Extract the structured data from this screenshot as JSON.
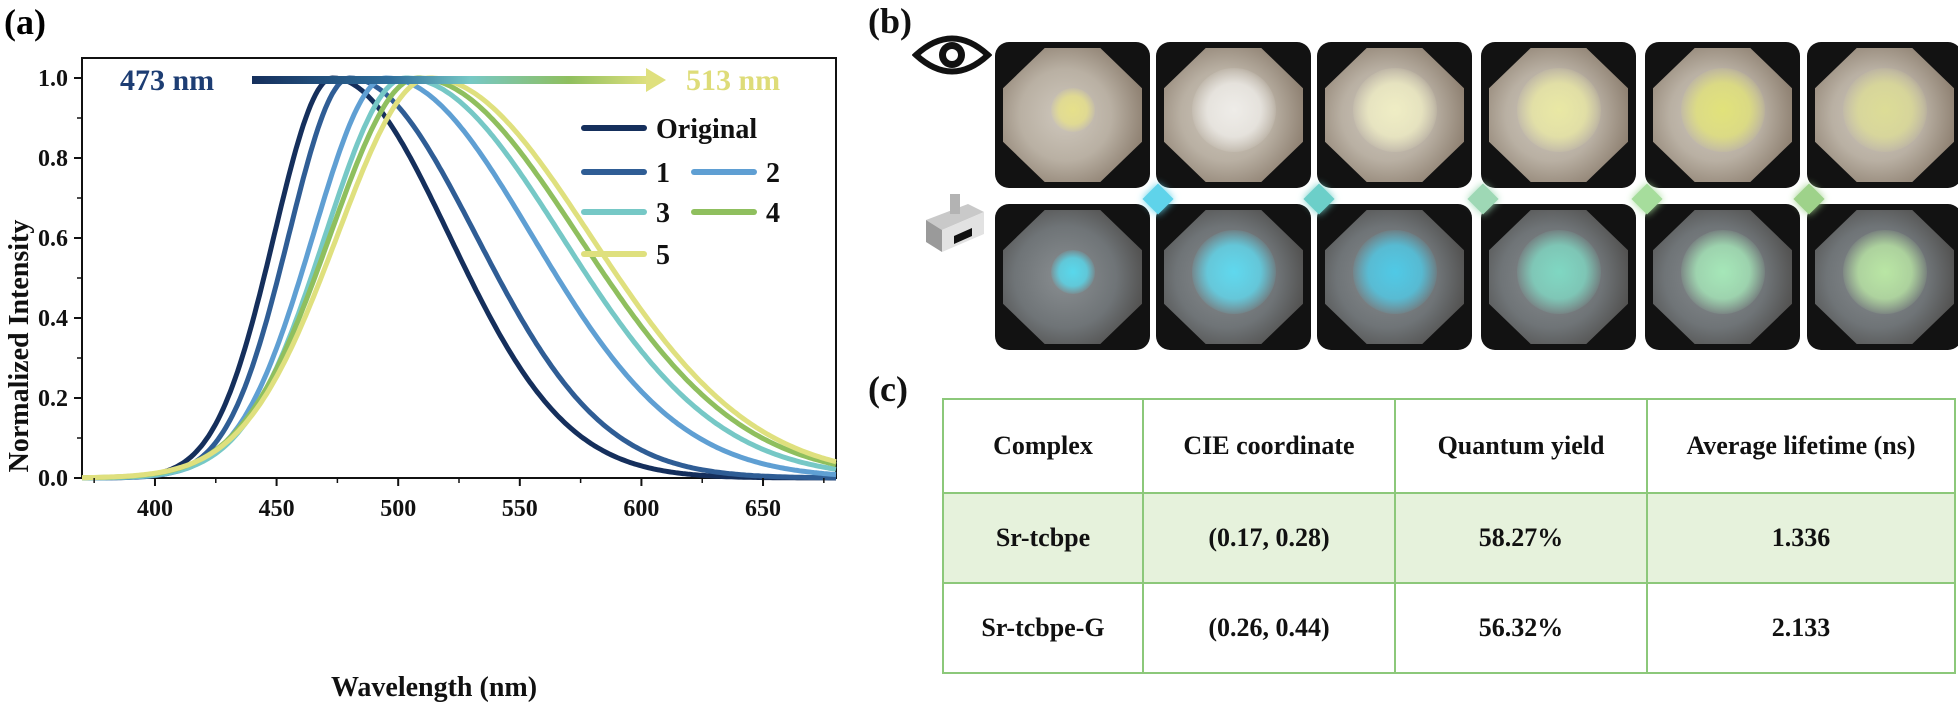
{
  "panels": {
    "a": "(a)",
    "b": "(b)",
    "c": "(c)"
  },
  "chart_data": {
    "type": "line",
    "xlabel": "Wavelength (nm)",
    "ylabel": "Normalized Intensity",
    "xlim": [
      370,
      680
    ],
    "ylim": [
      0.0,
      1.05
    ],
    "xticks": [
      400,
      450,
      500,
      550,
      600,
      650
    ],
    "yticks": [
      "0.0",
      "0.2",
      "0.4",
      "0.6",
      "0.8",
      "1.0"
    ],
    "range_start": "473 nm",
    "range_end": "513 nm",
    "legend_position": "top-right",
    "series": [
      {
        "name": "Original",
        "color": "#152f5c",
        "peak": 473,
        "sigma_left": 24,
        "sigma_right": 48
      },
      {
        "name": "1",
        "color": "#2f5d95",
        "peak": 480,
        "sigma_left": 25,
        "sigma_right": 52
      },
      {
        "name": "2",
        "color": "#5f9fd3",
        "peak": 495,
        "sigma_left": 30,
        "sigma_right": 60
      },
      {
        "name": "3",
        "color": "#76c8c6",
        "peak": 503,
        "sigma_left": 33,
        "sigma_right": 64
      },
      {
        "name": "4",
        "color": "#8fbf5e",
        "peak": 508,
        "sigma_left": 36,
        "sigma_right": 66
      },
      {
        "name": "5",
        "color": "#dfe07e",
        "peak": 513,
        "sigma_left": 38,
        "sigma_right": 66
      }
    ]
  },
  "photos": {
    "visible_spots": [
      "#e6e08a",
      "#eeece8",
      "#efedc4",
      "#e9e8a4",
      "#e1e27a",
      "#dcdc96"
    ],
    "uv_spots": [
      "#58d8ec",
      "#5fd8ee",
      "#4fc9e6",
      "#7fd7c2",
      "#a5e7b8",
      "#b9e6a4"
    ],
    "diamond_colors": [
      "#5fd3ea",
      "#6ccfc9",
      "#9ed8b5",
      "#a6dd9c",
      "#9ed28a"
    ],
    "eye_icon": "eye-icon",
    "lamp_icon": "uv-lamp-icon"
  },
  "table": {
    "headers": [
      "Complex",
      "CIE coordinate",
      "Quantum  yield",
      "Average lifetime (ns)"
    ],
    "rows": [
      [
        "Sr-tcbpe",
        "(0.17, 0.28)",
        "58.27%",
        "1.336"
      ],
      [
        "Sr-tcbpe-G",
        "(0.26, 0.44)",
        "56.32%",
        "2.133"
      ]
    ],
    "border_color": "#8cc87a",
    "highlight_color": "#e6f2dc"
  }
}
